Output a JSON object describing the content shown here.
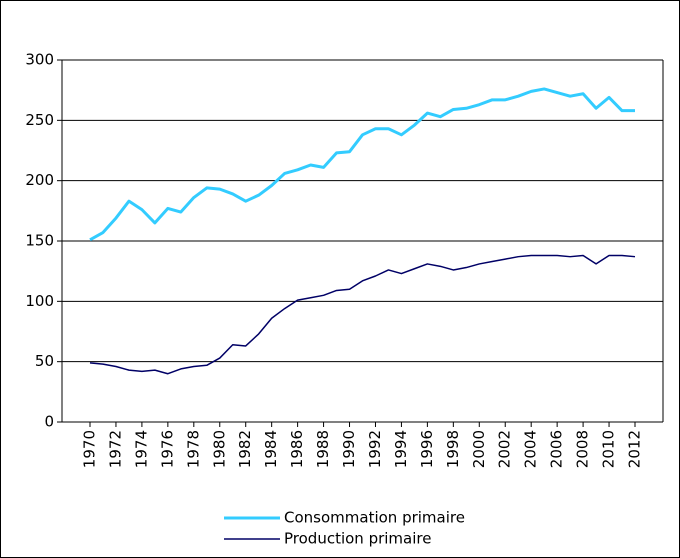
{
  "chart_data": {
    "type": "line",
    "x": [
      1970,
      1971,
      1972,
      1973,
      1974,
      1975,
      1976,
      1977,
      1978,
      1979,
      1980,
      1981,
      1982,
      1983,
      1984,
      1985,
      1986,
      1987,
      1988,
      1989,
      1990,
      1991,
      1992,
      1993,
      1994,
      1995,
      1996,
      1997,
      1998,
      1999,
      2000,
      2001,
      2002,
      2003,
      2004,
      2005,
      2006,
      2007,
      2008,
      2009,
      2010,
      2011,
      2012
    ],
    "series": [
      {
        "name": "Consommation primaire",
        "color": "#33ccff",
        "values": [
          151,
          157,
          169,
          183,
          176,
          165,
          177,
          174,
          186,
          194,
          193,
          189,
          183,
          188,
          196,
          206,
          209,
          213,
          211,
          223,
          224,
          238,
          243,
          243,
          238,
          246,
          256,
          253,
          259,
          260,
          263,
          267,
          267,
          270,
          274,
          276,
          273,
          270,
          272,
          260,
          269,
          258,
          258
        ]
      },
      {
        "name": "Production primaire",
        "color": "#000066",
        "values": [
          49,
          48,
          46,
          43,
          42,
          43,
          40,
          44,
          46,
          47,
          53,
          64,
          63,
          73,
          86,
          94,
          101,
          103,
          105,
          109,
          110,
          117,
          121,
          126,
          123,
          127,
          131,
          129,
          126,
          128,
          131,
          133,
          135,
          137,
          138,
          138,
          138,
          137,
          138,
          131,
          138,
          138,
          137
        ]
      }
    ],
    "xlim": [
      1970,
      2012
    ],
    "xticks": [
      1970,
      1972,
      1974,
      1976,
      1978,
      1980,
      1982,
      1984,
      1986,
      1988,
      1990,
      1992,
      1994,
      1996,
      1998,
      2000,
      2002,
      2004,
      2006,
      2008,
      2010,
      2012
    ],
    "ylim": [
      0,
      300
    ],
    "yticks": [
      0,
      50,
      100,
      150,
      200,
      250,
      300
    ],
    "grid": true,
    "legend": "bottom"
  }
}
